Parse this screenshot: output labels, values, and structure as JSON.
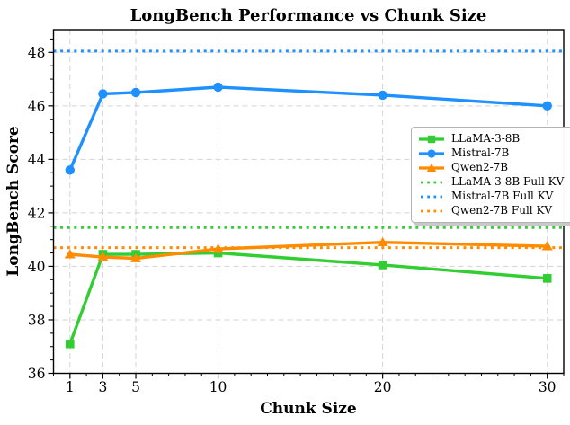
{
  "chart_data": {
    "type": "line",
    "title": "LongBench Performance vs Chunk Size",
    "xlabel": "Chunk Size",
    "ylabel": "LongBench Score",
    "x": [
      1,
      3,
      5,
      10,
      20,
      30
    ],
    "x_ticks": [
      "1",
      "3",
      "5",
      "10",
      "20",
      "30"
    ],
    "y_ticks": [
      36,
      38,
      40,
      42,
      44,
      46,
      48
    ],
    "xlim": [
      0,
      31
    ],
    "ylim": [
      36,
      48.85
    ],
    "grid": "dashed",
    "grid_color": "#d3d3d3",
    "axis_color": "#000000",
    "legend_position": "center-right",
    "series": [
      {
        "name": "LLaMA-3-8B",
        "color": "#32CD32",
        "style": "solid",
        "marker": "square",
        "values": [
          37.1,
          40.45,
          40.45,
          40.5,
          40.05,
          39.55
        ]
      },
      {
        "name": "Mistral-7B",
        "color": "#1E90FF",
        "style": "solid",
        "marker": "circle",
        "values": [
          43.6,
          46.45,
          46.5,
          46.7,
          46.4,
          46.0
        ]
      },
      {
        "name": "Qwen2-7B",
        "color": "#FF8C00",
        "style": "solid",
        "marker": "triangle",
        "values": [
          40.45,
          40.35,
          40.3,
          40.65,
          40.9,
          40.75
        ]
      },
      {
        "name": "LLaMA-3-8B Full KV",
        "color": "#32CD32",
        "style": "dotted",
        "value": 41.45
      },
      {
        "name": "Mistral-7B Full KV",
        "color": "#1E90FF",
        "style": "dotted",
        "value": 48.05
      },
      {
        "name": "Qwen2-7B Full KV",
        "color": "#FF8C00",
        "style": "dotted",
        "value": 40.7
      }
    ]
  }
}
